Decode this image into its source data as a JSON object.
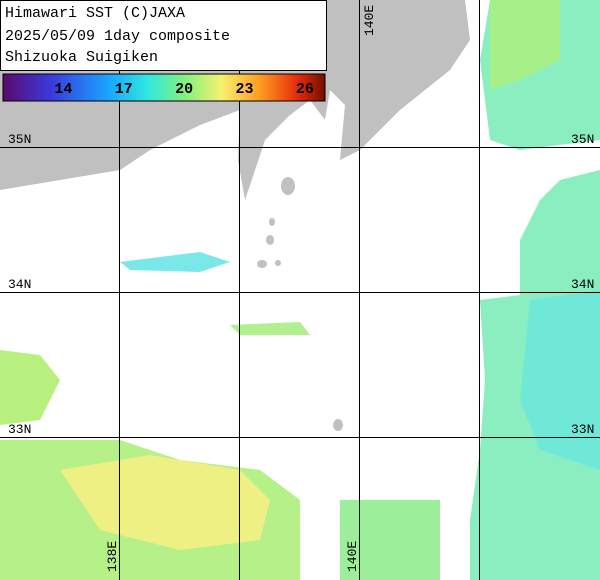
{
  "header": {
    "lines": [
      "Himawari SST (C)JAXA",
      "2025/05/09 1day composite",
      "Shizuoka Suigiken"
    ]
  },
  "colorbar": {
    "range": [
      11,
      27
    ],
    "ticks": [
      14,
      17,
      20,
      23,
      26
    ]
  },
  "grid": {
    "lat_labels": [
      "35N",
      "34N",
      "33N"
    ],
    "lon_labels": [
      "140E",
      "138E",
      "140E"
    ]
  }
}
